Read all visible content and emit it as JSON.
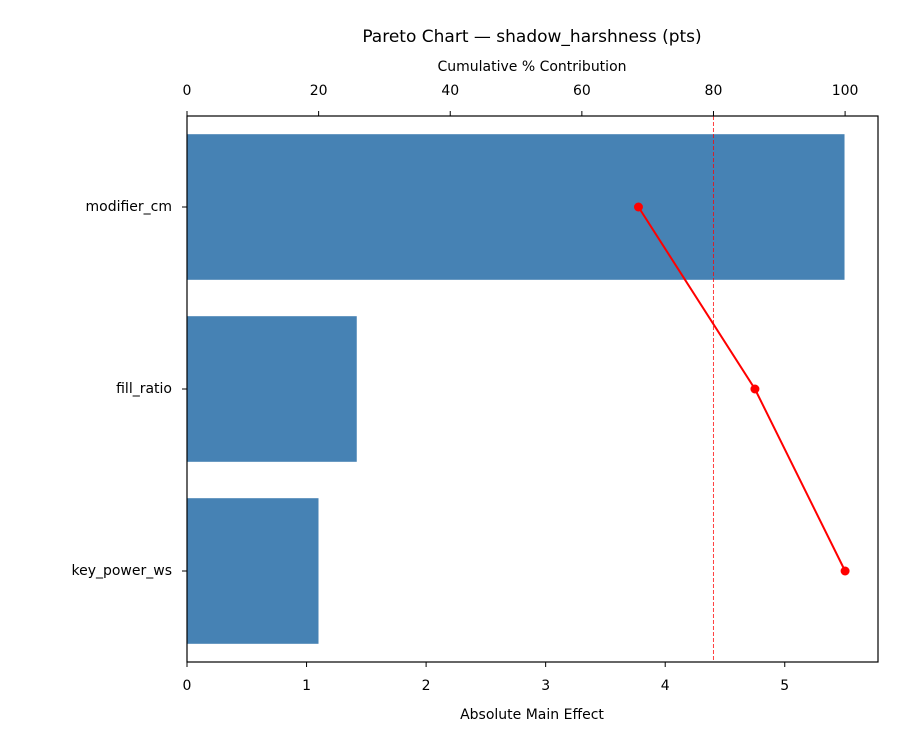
{
  "chart_data": {
    "type": "bar",
    "orientation": "horizontal",
    "title": "Pareto Chart — shadow_harshness (pts)",
    "x_label": "Absolute Main Effect",
    "x2_label": "Cumulative % Contribution",
    "categories": [
      "modifier_cm",
      "fill_ratio",
      "key_power_ws"
    ],
    "values": [
      5.5,
      1.42,
      1.1
    ],
    "color": "#4682b4",
    "cumulative": {
      "values": [
        68.6,
        86.3,
        100
      ],
      "color": "#ff0000"
    },
    "threshold": 80,
    "threshold_color": "#ff0000",
    "xlim": [
      0,
      5.78
    ],
    "xticks": [
      0,
      1,
      2,
      3,
      4,
      5
    ],
    "x2lim": [
      0,
      105
    ],
    "x2ticks": [
      0,
      20,
      40,
      60,
      80,
      100
    ]
  }
}
